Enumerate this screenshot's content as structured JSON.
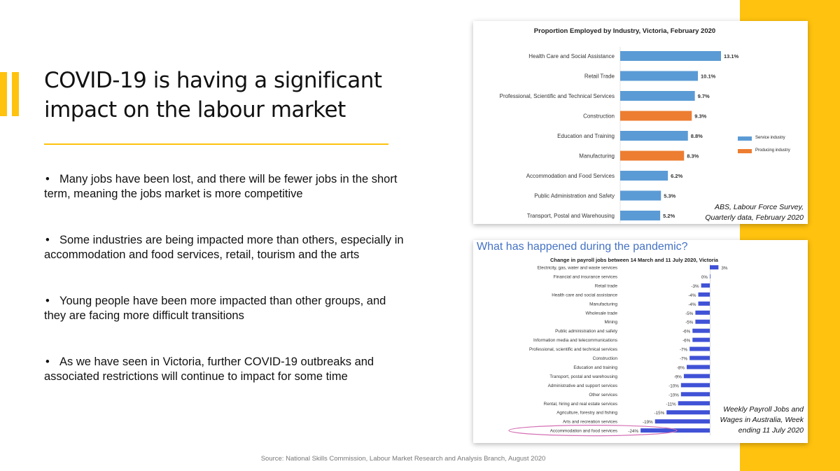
{
  "slide": {
    "title": "COVID-19 is having a significant impact on the labour market",
    "bullet_glyph": "•",
    "bullets": [
      "Many jobs have been lost, and there will be fewer jobs in the short term, meaning the jobs market is more competitive",
      "Some industries are being impacted more than others, especially in accommodation and food services, retail, tourism and the arts",
      "Young people have been more impacted than other groups, and they are facing more difficult transitions",
      "As we have seen in Victoria, further COVID-19 outbreaks and associated restrictions will continue to impact for some time"
    ],
    "source": "Source: National Skills Commission, Labour Market Research and Analysis Branch, August 2020",
    "colors": {
      "accent": "#FFC20E",
      "service": "#5B9BD5",
      "producing": "#ED7D31",
      "change_bar": "#4052D6",
      "highlight_ellipse": "#D46FB4"
    }
  },
  "chart_data": [
    {
      "type": "bar",
      "orientation": "horizontal",
      "title": "Proportion Employed by Industry, Victoria, February 2020",
      "categories": [
        "Health Care and Social Assistance",
        "Retail Trade",
        "Professional, Scientific and Technical Services",
        "Construction",
        "Education and Training",
        "Manufacturing",
        "Accommodation and Food Services",
        "Public Administration and Safety",
        "Transport, Postal and Warehousing"
      ],
      "values": [
        13.1,
        10.1,
        9.7,
        9.3,
        8.8,
        8.3,
        6.2,
        5.3,
        5.2
      ],
      "value_labels": [
        "13.1%",
        "10.1%",
        "9.7%",
        "9.3%",
        "8.8%",
        "8.3%",
        "6.2%",
        "5.3%",
        "5.2%"
      ],
      "groups": [
        "service",
        "service",
        "service",
        "producing",
        "service",
        "producing",
        "service",
        "service",
        "service"
      ],
      "legend": [
        {
          "key": "service",
          "label": "Service industry",
          "color": "#5B9BD5"
        },
        {
          "key": "producing",
          "label": "Producing industry",
          "color": "#ED7D31"
        }
      ],
      "legend_position": "right",
      "xlim": [
        0,
        13.1
      ],
      "grid": false,
      "source_lines": [
        "ABS, Labour Force Survey,",
        "Quarterly data, February 2020"
      ]
    },
    {
      "type": "bar",
      "orientation": "horizontal",
      "heading": "What has happened during the pandemic?",
      "title": "Change in payroll jobs between 14 March and 11 July 2020, Victoria",
      "categories": [
        "Electricity, gas, water and waste services",
        "Financial and insurance services",
        "Retail trade",
        "Health care and social assistance",
        "Manufacturing",
        "Wholesale trade",
        "Mining",
        "Public administration and safety",
        "Information media and telecommunications",
        "Professional, scientific and technical services",
        "Construction",
        "Education and training",
        "Transport, postal and warehousing",
        "Administrative and support services",
        "Other services",
        "Rental, hiring and real estate services",
        "Agriculture, forestry and fishing",
        "Arts and recreation services",
        "Accommodation and food services"
      ],
      "values": [
        3,
        0,
        -3,
        -4,
        -4,
        -5,
        -5,
        -6,
        -6,
        -7,
        -7,
        -8,
        -9,
        -10,
        -10,
        -11,
        -15,
        -19,
        -24
      ],
      "value_labels": [
        "3%",
        "0%",
        "-3%",
        "-4%",
        "-4%",
        "-5%",
        "-5%",
        "-6%",
        "-6%",
        "-7%",
        "-7%",
        "-8%",
        "-9%",
        "-10%",
        "-10%",
        "-11%",
        "-15%",
        "-19%",
        "-24%"
      ],
      "highlighted_category": "Accommodation and food services",
      "xlim": [
        -24,
        3
      ],
      "grid": false,
      "source_lines": [
        "Weekly Payroll Jobs and",
        "Wages in Australia, Week",
        "ending 11 July 2020"
      ]
    }
  ]
}
